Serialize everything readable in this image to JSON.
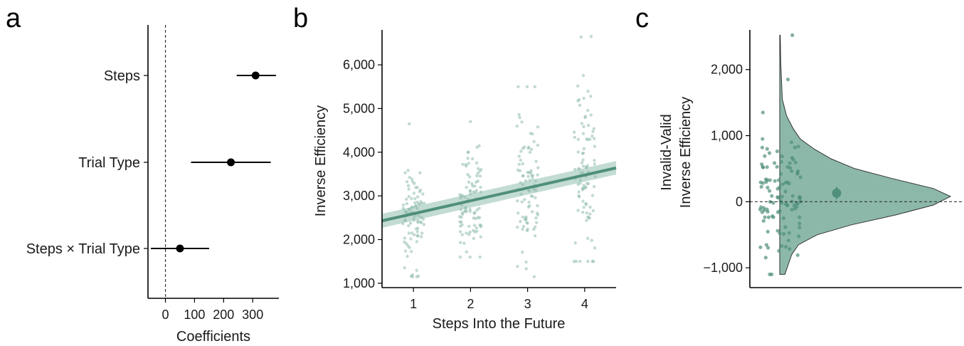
{
  "figure": {
    "panels": [
      {
        "letter": "a"
      },
      {
        "letter": "b"
      },
      {
        "letter": "c"
      }
    ]
  },
  "chart_data": [
    {
      "type": "scatter",
      "description_free": true,
      "panel": "a",
      "title": "",
      "xlabel": "Coefficients",
      "ylabel": "",
      "xlim": [
        -60,
        390
      ],
      "xticks": [
        0,
        100,
        200,
        300
      ],
      "xtick_labels": [
        "0",
        "100",
        "200",
        "300"
      ],
      "reference_line_x": 0,
      "terms": [
        {
          "label": "Steps",
          "estimate": 310,
          "ci_low": 245,
          "ci_high": 380
        },
        {
          "label": "Trial Type",
          "estimate": 225,
          "ci_low": 88,
          "ci_high": 362
        },
        {
          "label": "Steps × Trial Type",
          "estimate": 50,
          "ci_low": -50,
          "ci_high": 150
        }
      ]
    },
    {
      "type": "scatter",
      "panel": "b",
      "title": "",
      "xlabel": "Steps Into the Future",
      "ylabel": "Inverse Efficiency",
      "xlim": [
        0.45,
        4.55
      ],
      "ylim": [
        900,
        6800
      ],
      "xticks": [
        1,
        2,
        3,
        4
      ],
      "xtick_labels": [
        "1",
        "2",
        "3",
        "4"
      ],
      "yticks": [
        1000,
        2000,
        3000,
        4000,
        5000,
        6000
      ],
      "ytick_labels": [
        "1,000",
        "2,000",
        "3,000",
        "4,000",
        "5,000",
        "6,000"
      ],
      "fit_line": {
        "x": [
          0.45,
          4.55
        ],
        "y": [
          2430,
          3640
        ]
      },
      "fit_band": {
        "x": [
          0.45,
          4.55
        ],
        "lower": [
          2270,
          3490
        ],
        "upper": [
          2590,
          3800
        ]
      },
      "points_per_step": 90,
      "step_summary": [
        {
          "step": 1,
          "min": 1150,
          "max": 4650,
          "center": 2550
        },
        {
          "step": 2,
          "min": 1600,
          "max": 4700,
          "center": 2850
        },
        {
          "step": 3,
          "min": 1150,
          "max": 5500,
          "center": 3150
        },
        {
          "step": 4,
          "min": 1500,
          "max": 6650,
          "center": 3450
        }
      ]
    },
    {
      "type": "scatter",
      "panel": "c",
      "title": "",
      "ylabel_line1": "Invalid-Valid",
      "ylabel_line2": "Inverse Efficiency",
      "ylim": [
        -1300,
        2600
      ],
      "yticks": [
        -1000,
        0,
        1000,
        2000
      ],
      "ytick_labels": [
        "−1,000",
        "0",
        "1,000",
        "2,000"
      ],
      "reference_line_y": 0,
      "mean": 130,
      "ci": [
        40,
        220
      ],
      "points_range": [
        -1100,
        2520
      ],
      "n_points": 110,
      "density": [
        {
          "y": -1100,
          "d": 0.03
        },
        {
          "y": -950,
          "d": 0.05
        },
        {
          "y": -800,
          "d": 0.07
        },
        {
          "y": -650,
          "d": 0.11
        },
        {
          "y": -500,
          "d": 0.22
        },
        {
          "y": -350,
          "d": 0.42
        },
        {
          "y": -200,
          "d": 0.68
        },
        {
          "y": -50,
          "d": 0.9
        },
        {
          "y": 80,
          "d": 1.0
        },
        {
          "y": 200,
          "d": 0.9
        },
        {
          "y": 350,
          "d": 0.66
        },
        {
          "y": 500,
          "d": 0.44
        },
        {
          "y": 650,
          "d": 0.3
        },
        {
          "y": 800,
          "d": 0.2
        },
        {
          "y": 950,
          "d": 0.12
        },
        {
          "y": 1100,
          "d": 0.08
        },
        {
          "y": 1300,
          "d": 0.04
        },
        {
          "y": 1550,
          "d": 0.015
        },
        {
          "y": 1850,
          "d": 0.01
        },
        {
          "y": 2100,
          "d": 0.006
        },
        {
          "y": 2350,
          "d": 0.004
        },
        {
          "y": 2520,
          "d": 0.003
        }
      ]
    }
  ],
  "colors": {
    "accent": "#4f8f7b",
    "band": "#a9cdc1",
    "violin": "#8cb8aa",
    "dots": "#8fbcae"
  }
}
